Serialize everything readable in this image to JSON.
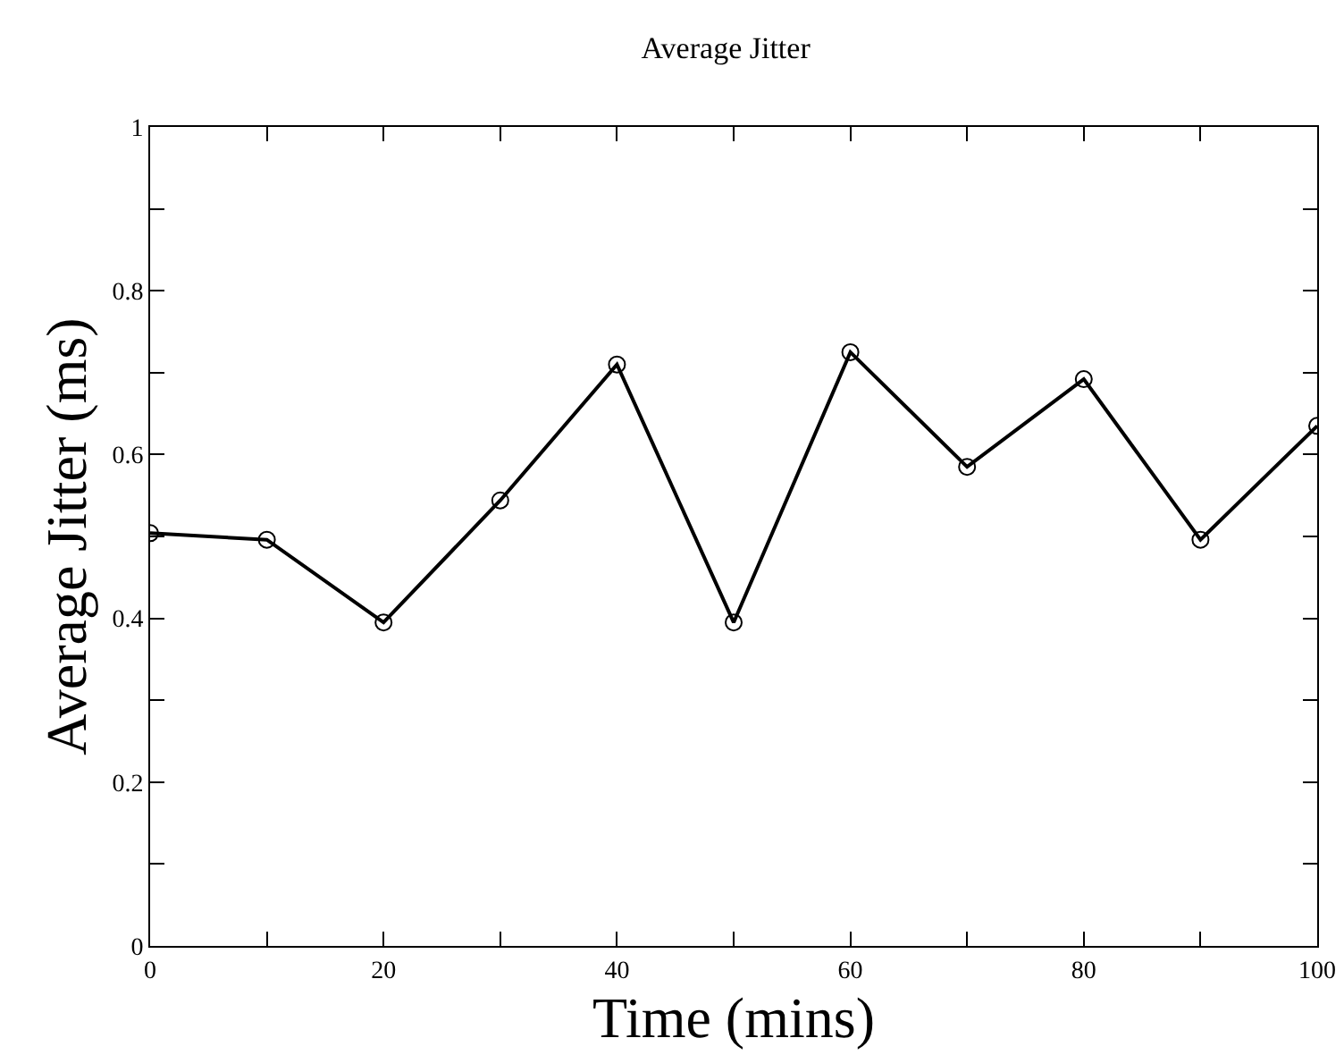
{
  "chart_data": {
    "type": "line",
    "title": "Average Jitter",
    "xlabel": "Time (mins)",
    "ylabel": "Average Jitter (ms)",
    "x": [
      0,
      10,
      20,
      30,
      40,
      50,
      60,
      70,
      80,
      90,
      100
    ],
    "series": [
      {
        "color": "#000000",
        "values": [
          0.504,
          0.496,
          0.395,
          0.544,
          0.71,
          0.395,
          0.725,
          0.585,
          0.692,
          0.496,
          0.635
        ]
      }
    ],
    "xlim": [
      0,
      100
    ],
    "ylim": [
      0,
      1
    ],
    "xticks": [
      0,
      {
        "value": 10,
        "label": null
      },
      20,
      {
        "value": 30,
        "label": null
      },
      40,
      {
        "value": 50,
        "label": null
      },
      60,
      {
        "value": 70,
        "label": null
      },
      80,
      {
        "value": 90,
        "label": null
      },
      100
    ],
    "yticks": [
      0,
      {
        "value": 0.1,
        "label": null
      },
      0.2,
      {
        "value": 0.3,
        "label": null
      },
      0.4,
      {
        "value": 0.5,
        "label": null
      },
      0.6,
      {
        "value": 0.7,
        "label": null
      },
      0.8,
      {
        "value": 0.9,
        "label": null
      },
      1
    ],
    "marker": "circle",
    "line_style": "solid"
  }
}
